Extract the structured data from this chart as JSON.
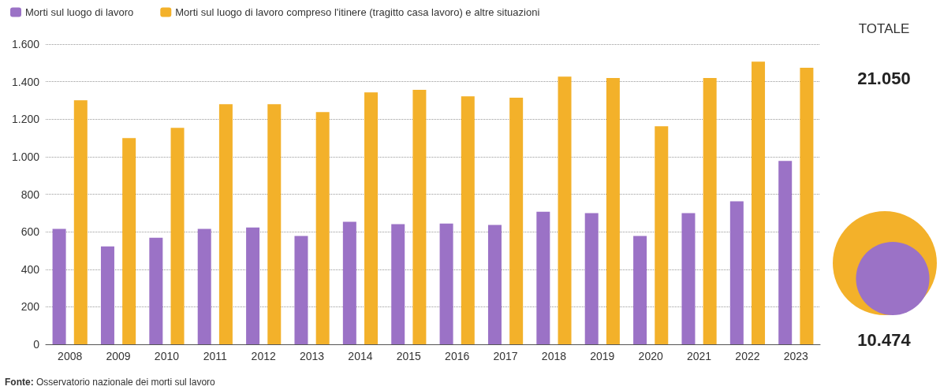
{
  "chart_data": [
    {
      "type": "bar",
      "categories": [
        "2008",
        "2009",
        "2010",
        "2011",
        "2012",
        "2013",
        "2014",
        "2015",
        "2016",
        "2017",
        "2018",
        "2019",
        "2020",
        "2021",
        "2022",
        "2023"
      ],
      "series": [
        {
          "name": "Morti sul luogo di lavoro",
          "color": "#9b72c6",
          "values": [
            615,
            522,
            568,
            615,
            623,
            577,
            653,
            640,
            644,
            636,
            707,
            699,
            577,
            699,
            762,
            977
          ]
        },
        {
          "name": "Morti sul luogo di lavoro compreso l'itinere (tragitto casa lavoro) e altre situazioni",
          "color": "#f3b12a",
          "values": [
            1301,
            1099,
            1154,
            1280,
            1280,
            1238,
            1343,
            1356,
            1322,
            1314,
            1427,
            1419,
            1162,
            1419,
            1507,
            1474
          ]
        }
      ],
      "ylim": [
        0,
        1600
      ],
      "yticks": [
        0,
        200,
        400,
        600,
        800,
        {
          "value": 1000,
          "label": "1.000"
        },
        {
          "value": 1200,
          "label": "1.200"
        },
        {
          "value": 1400,
          "label": "1.400"
        },
        {
          "value": 1600,
          "label": "1.600"
        }
      ],
      "grid": "y",
      "legend": "top left",
      "annotations": [
        "Fonte: Osservatorio nazionale dei morti sul lavoro"
      ]
    },
    {
      "type": "other",
      "title": "TOTALE",
      "categories": [
        null,
        null
      ],
      "values": [
        21050,
        10474
      ],
      "colors": [
        "#f3b12a",
        "#9b72c6"
      ],
      "value_labels": [
        "21.050",
        "10.474"
      ]
    }
  ]
}
